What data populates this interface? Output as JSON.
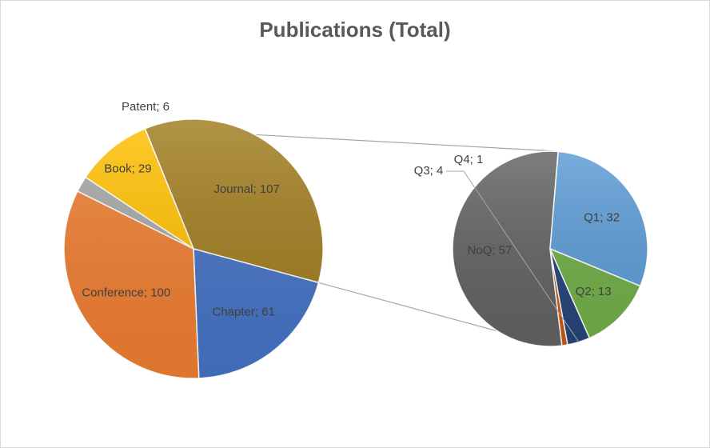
{
  "chart_data": {
    "type": "bar-of-pie",
    "title": "Publications (Total)",
    "main_pie": {
      "slices": [
        {
          "label": "Journal",
          "value": 107,
          "color": "#A07C1E",
          "text": "Journal; 107"
        },
        {
          "label": "Chapter",
          "value": 61,
          "color": "#4472C4",
          "text": "Chapter; 61"
        },
        {
          "label": "Conference",
          "value": 100,
          "color": "#ED7D31",
          "text": "Conference; 100"
        },
        {
          "label": "Patent",
          "value": 6,
          "color": "#A5A5A5",
          "text": "Patent; 6"
        },
        {
          "label": "Book",
          "value": 29,
          "color": "#FFC000",
          "text": "Book; 29"
        }
      ]
    },
    "breakout_pie": {
      "source": "Journal",
      "slices": [
        {
          "label": "NoQ",
          "value": 57,
          "color": "#626262",
          "text": "NoQ; 57"
        },
        {
          "label": "Q1",
          "value": 32,
          "color": "#5B9BD5",
          "text": "Q1; 32"
        },
        {
          "label": "Q2",
          "value": 13,
          "color": "#70AD47",
          "text": "Q2; 13"
        },
        {
          "label": "Q3",
          "value": 4,
          "color": "#264478",
          "text": "Q3; 4"
        },
        {
          "label": "Q4",
          "value": 1,
          "color": "#C55A11",
          "text": "Q4; 1"
        }
      ]
    }
  }
}
